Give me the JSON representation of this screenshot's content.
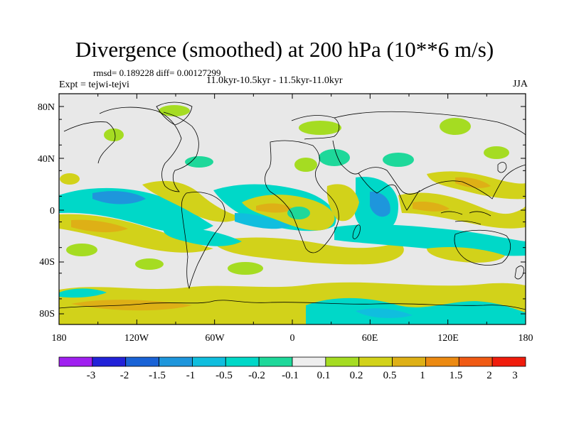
{
  "title": "Divergence (smoothed) at 200 hPa (10**6 m/s)",
  "stats": "rmsd= 0.189228 diff= 0.00127299",
  "expt": "Expt = tejwi-tejvi",
  "period": "11.0kyr-10.5kyr - 11.5kyr-11.0kyr",
  "season": "JJA",
  "axes": {
    "x_ticks": [
      "180",
      "120W",
      "60W",
      "0",
      "60E",
      "120E",
      "180"
    ],
    "y_ticks": [
      "80N",
      "40N",
      "0",
      "40S",
      "80S"
    ]
  },
  "colorbar": {
    "labels": [
      "-3",
      "-2",
      "-1.5",
      "-1",
      "-0.5",
      "-0.2",
      "-0.1",
      "0.1",
      "0.2",
      "0.5",
      "1",
      "1.5",
      "2",
      "3"
    ],
    "colors": [
      "#a020f0",
      "#2222d8",
      "#1a63d6",
      "#1e96dc",
      "#10bede",
      "#00d8c8",
      "#1ed89a",
      "#eeeeee",
      "#a5dc22",
      "#d2d21a",
      "#deb016",
      "#ec8a12",
      "#f05a14",
      "#f01c0c"
    ]
  },
  "map_colors": {
    "background": "#e8e8e8",
    "pos_light": "#a5dc22",
    "pos_mid": "#d2d21a",
    "pos_strong": "#deb016",
    "pos_stronger": "#ec8a12",
    "neg_light": "#1ed89a",
    "neg_mid": "#00d8c8",
    "neg_strong": "#10bede",
    "neg_stronger": "#1e96dc",
    "coast": "#000000"
  }
}
